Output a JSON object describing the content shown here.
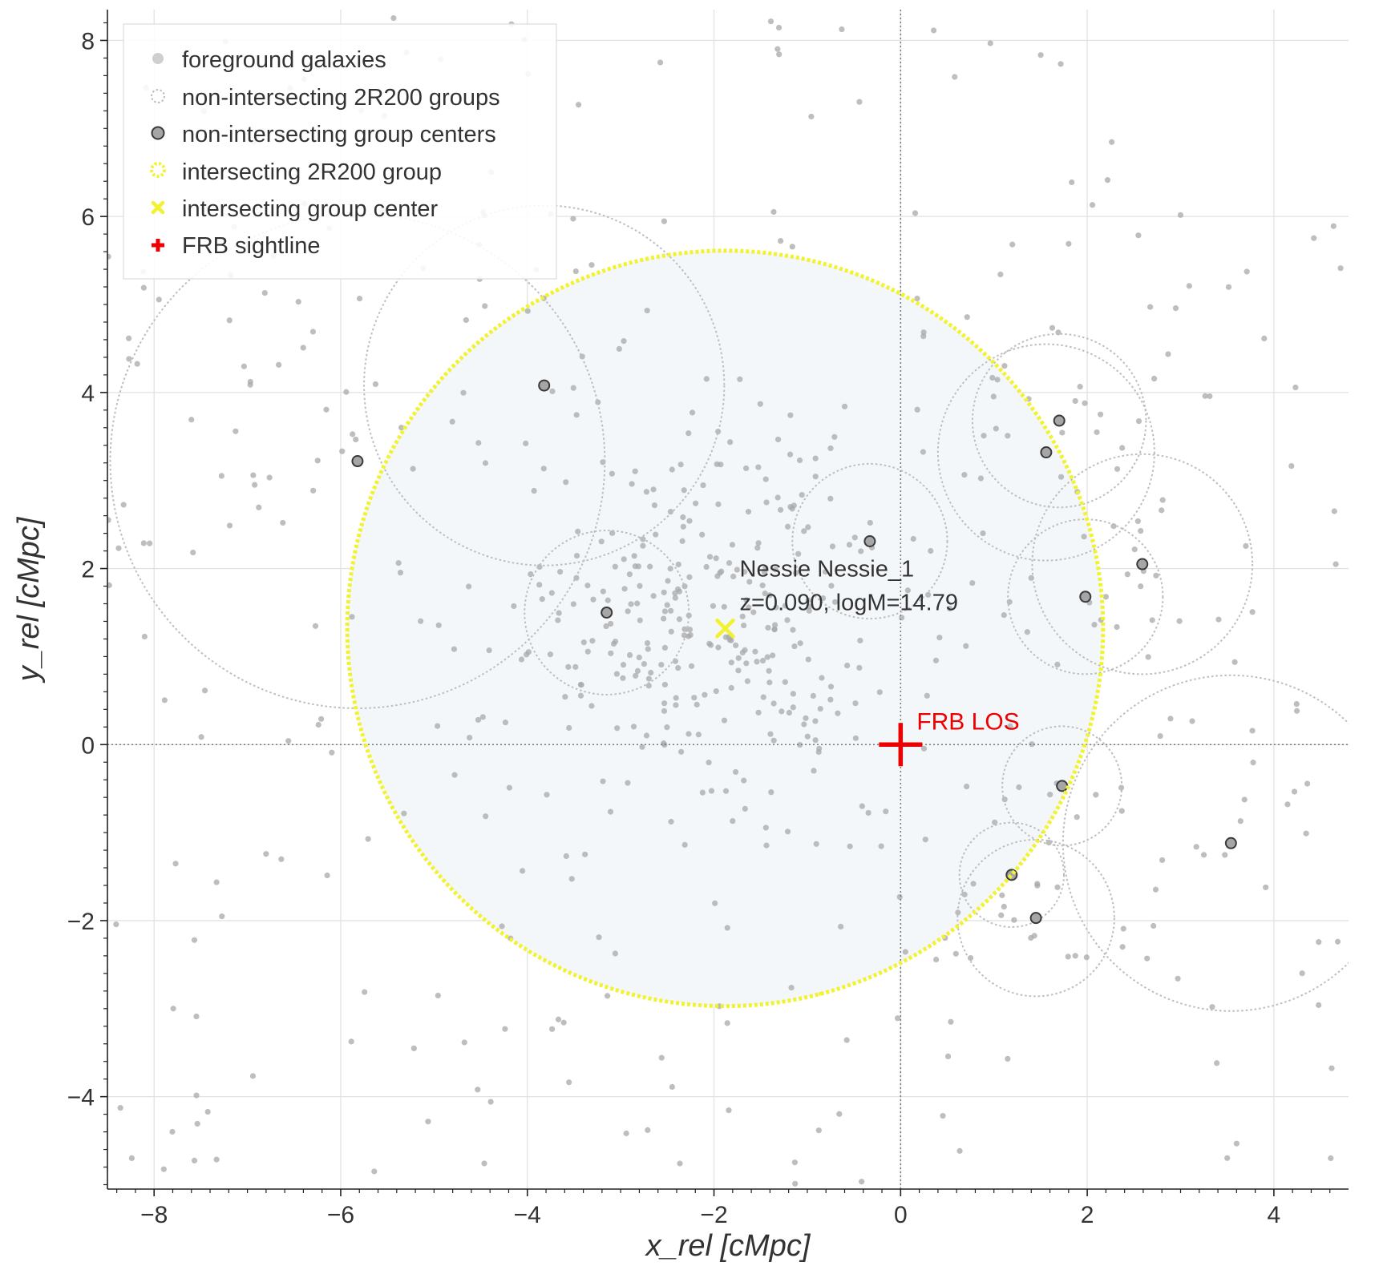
{
  "chart_data": {
    "type": "scatter",
    "xlabel": "x_rel [cMpc]",
    "ylabel": "y_rel [cMpc]",
    "xlim": [
      -8.5,
      4.8
    ],
    "ylim": [
      -5.05,
      8.35
    ],
    "x_ticks": [
      -8,
      -6,
      -4,
      -2,
      0,
      2,
      4
    ],
    "y_ticks": [
      -4,
      -2,
      0,
      2,
      4,
      6,
      8
    ],
    "x_tick_labels": [
      "−8",
      "−6",
      "−4",
      "−2",
      "0",
      "2",
      "4"
    ],
    "y_tick_labels": [
      "−4",
      "−2",
      "0",
      "2",
      "4",
      "6",
      "8"
    ],
    "grid": true,
    "legend_position": "top-left",
    "legend": [
      {
        "label": "foreground galaxies",
        "marker": "filled-dot"
      },
      {
        "label": "non-intersecting 2R200 groups",
        "marker": "dotted-circle"
      },
      {
        "label": "non-intersecting group centers",
        "marker": "outlined-dot"
      },
      {
        "label": "intersecting 2R200 group",
        "marker": "yellow-dotted-circle"
      },
      {
        "label": "intersecting group center",
        "marker": "yellow-x"
      },
      {
        "label": "FRB sightline",
        "marker": "red-plus"
      }
    ],
    "intersecting_group": {
      "name": "Nessie Nessie_1",
      "annotation_line1": "Nessie Nessie_1",
      "annotation_line2": "z=0.090, logM=14.79",
      "center": [
        -1.88,
        1.32
      ],
      "r_2R200": 4.05,
      "color": "#f2f231",
      "fill": "#f3f7fa"
    },
    "frb": {
      "label": "FRB LOS",
      "x": 0,
      "y": 0,
      "color": "#ee0000"
    },
    "non_intersecting_groups": [
      {
        "x": -5.82,
        "y": 3.22,
        "r": 2.65
      },
      {
        "x": -3.82,
        "y": 4.08,
        "r": 1.93
      },
      {
        "x": -3.15,
        "y": 1.5,
        "r": 0.88
      },
      {
        "x": -0.33,
        "y": 2.31,
        "r": 0.83
      },
      {
        "x": 1.7,
        "y": 3.68,
        "r": 0.93
      },
      {
        "x": 1.56,
        "y": 3.32,
        "r": 1.16
      },
      {
        "x": 2.59,
        "y": 2.05,
        "r": 1.18
      },
      {
        "x": 1.98,
        "y": 1.68,
        "r": 0.83
      },
      {
        "x": 1.73,
        "y": -0.47,
        "r": 0.64
      },
      {
        "x": 1.19,
        "y": -1.48,
        "r": 0.56
      },
      {
        "x": 1.45,
        "y": -1.97,
        "r": 0.84
      },
      {
        "x": 3.54,
        "y": -1.12,
        "r": 1.8
      }
    ],
    "galaxy_counts": {
      "field_count": 330,
      "cluster_count": 260,
      "cluster_spread": 1.1
    }
  },
  "colors": {
    "galaxy": "#a8a8a8",
    "group_ring": "#bdbdbd",
    "center_fill": "#a6a6a6",
    "center_edge": "#3a3a3a",
    "grid": "#e2e2e2",
    "axis": "#222222",
    "zero_line": "#777777"
  }
}
